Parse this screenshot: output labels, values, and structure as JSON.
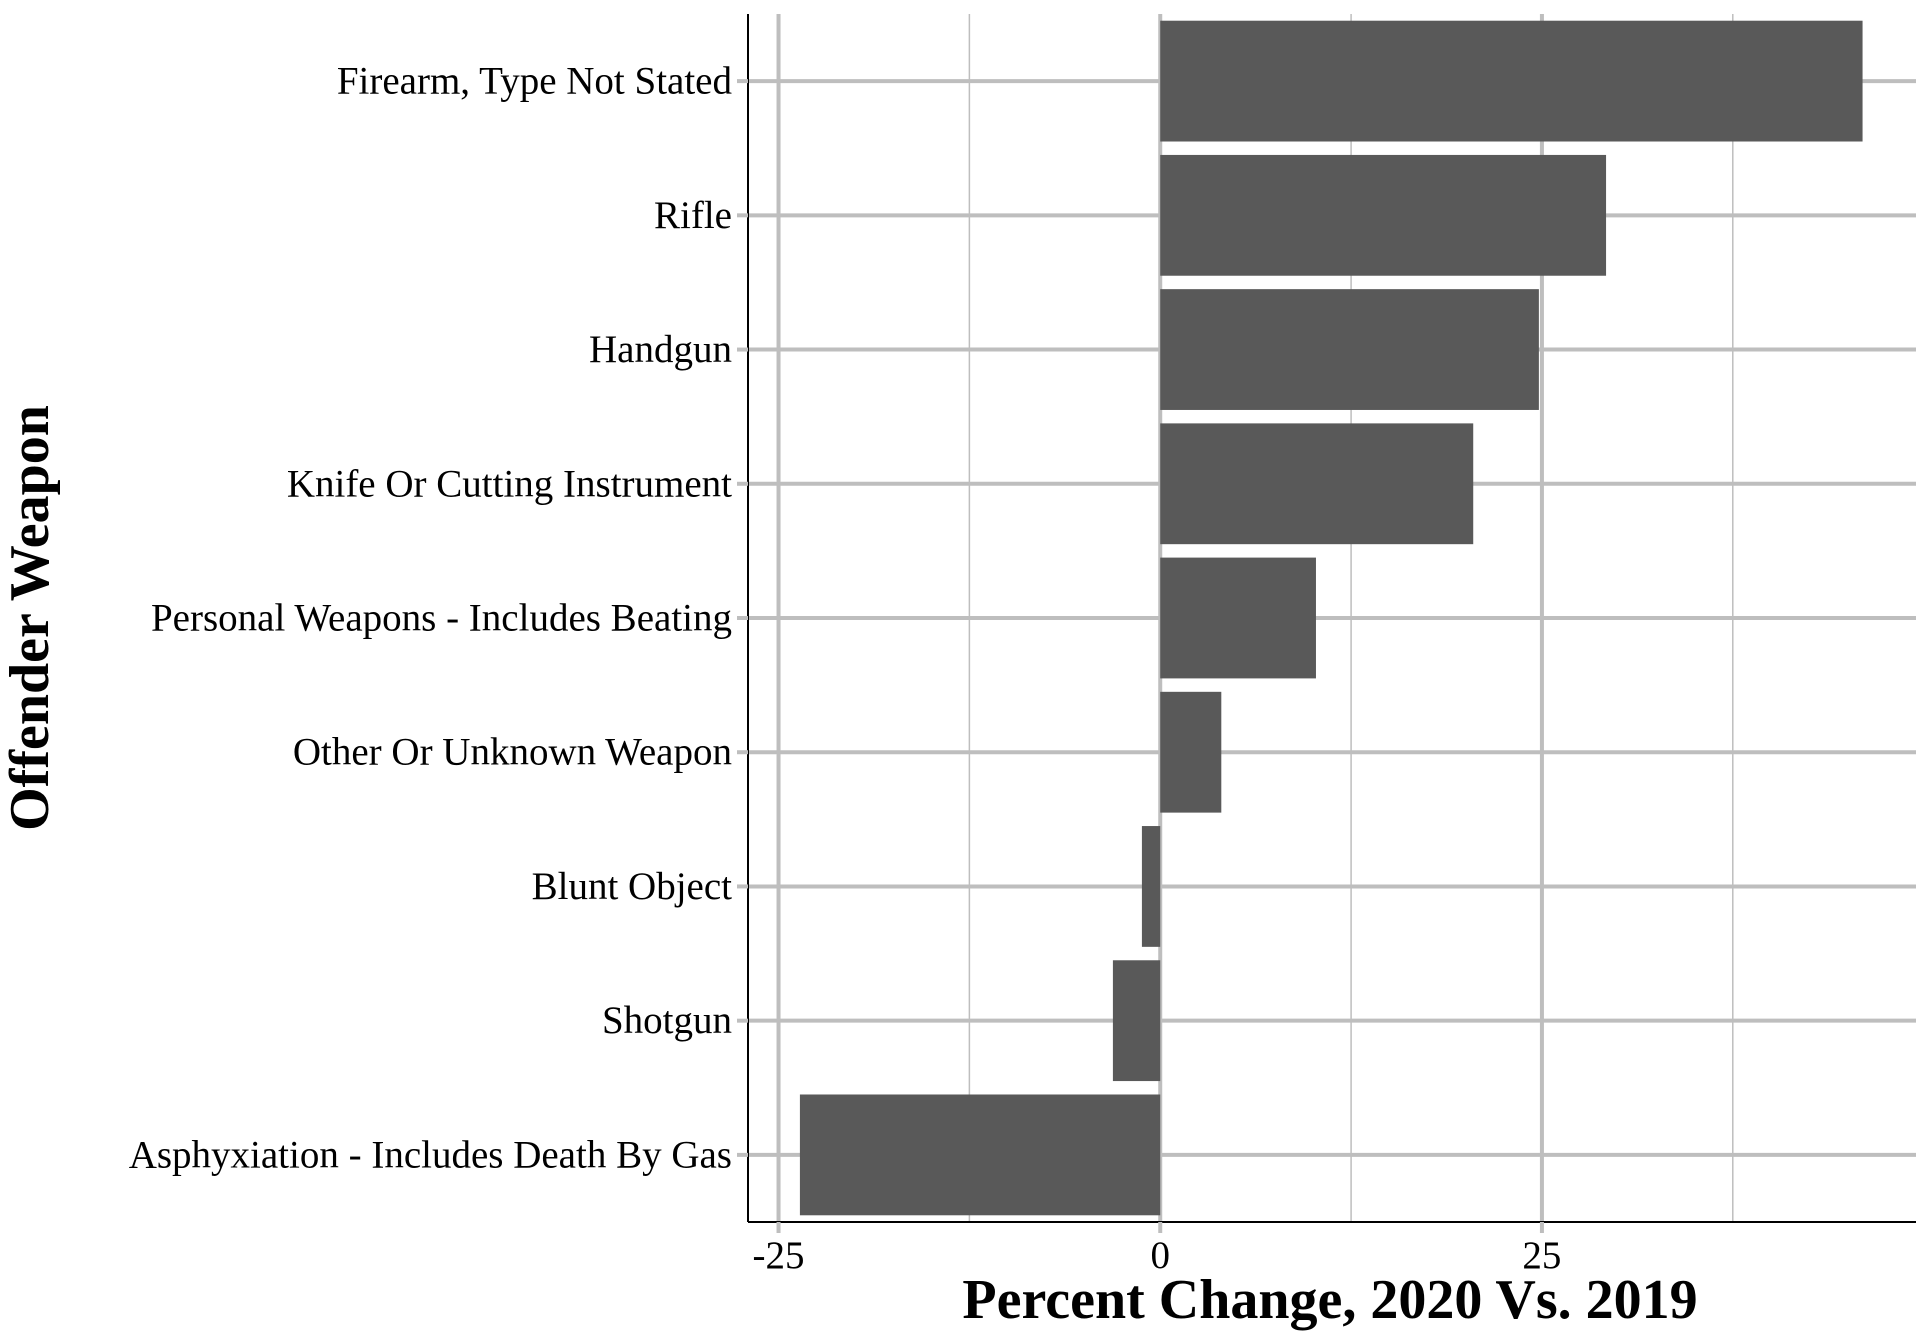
{
  "chart_data": {
    "type": "bar",
    "orientation": "horizontal",
    "xlabel": "Percent Change, 2020 Vs. 2019",
    "ylabel": "Offender Weapon",
    "categories": [
      "Firearm, Type Not Stated",
      "Rifle",
      "Handgun",
      "Knife Or Cutting Instrument",
      "Personal Weapons - Includes Beating",
      "Other Or Unknown Weapon",
      "Blunt Object",
      "Shotgun",
      "Asphyxiation - Includes Death By Gas"
    ],
    "values": [
      46,
      29.2,
      24.8,
      20.5,
      10.2,
      4,
      -1.2,
      -3.1,
      -23.6
    ],
    "xlim": [
      -27,
      49.5
    ],
    "xticks": [
      -25,
      0,
      25
    ],
    "xtick_labels": [
      "-25",
      "0",
      "25"
    ],
    "grid": true,
    "bar_color": "#595959",
    "grid_color": "#bebebe"
  }
}
